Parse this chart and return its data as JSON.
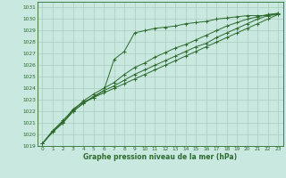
{
  "title": "Graphe pression niveau de la mer (hPa)",
  "bg_color": "#c8e8e0",
  "grid_color": "#aaccbb",
  "line_color": "#2d6a2d",
  "marker_color": "#2d6a2d",
  "xlim": [
    -0.5,
    23.5
  ],
  "ylim": [
    1019,
    1031.5
  ],
  "yticks": [
    1019,
    1020,
    1021,
    1022,
    1023,
    1024,
    1025,
    1026,
    1027,
    1028,
    1029,
    1030,
    1031
  ],
  "xticks": [
    0,
    1,
    2,
    3,
    4,
    5,
    6,
    7,
    8,
    9,
    10,
    11,
    12,
    13,
    14,
    15,
    16,
    17,
    18,
    19,
    20,
    21,
    22,
    23
  ],
  "series": [
    [
      1019.2,
      1020.3,
      1021.1,
      1022.2,
      1022.8,
      1023.2,
      1023.8,
      1026.5,
      1027.2,
      1028.8,
      1029.0,
      1029.2,
      1029.3,
      1029.4,
      1029.6,
      1029.7,
      1029.8,
      1030.0,
      1030.1,
      1030.2,
      1030.3,
      1030.3,
      1030.3,
      1030.4
    ],
    [
      1019.2,
      1020.3,
      1021.2,
      1022.1,
      1022.9,
      1023.5,
      1024.0,
      1024.5,
      1025.2,
      1025.8,
      1026.2,
      1026.7,
      1027.1,
      1027.5,
      1027.8,
      1028.2,
      1028.6,
      1029.0,
      1029.4,
      1029.7,
      1030.0,
      1030.2,
      1030.4,
      1030.5
    ],
    [
      1019.2,
      1020.2,
      1021.0,
      1022.0,
      1022.7,
      1023.3,
      1023.8,
      1024.2,
      1024.7,
      1025.2,
      1025.6,
      1026.0,
      1026.4,
      1026.8,
      1027.2,
      1027.6,
      1027.9,
      1028.4,
      1028.8,
      1029.2,
      1029.6,
      1030.0,
      1030.3,
      1030.5
    ],
    [
      1019.2,
      1020.2,
      1021.0,
      1022.0,
      1022.7,
      1023.2,
      1023.6,
      1024.0,
      1024.4,
      1024.8,
      1025.2,
      1025.6,
      1026.0,
      1026.4,
      1026.8,
      1027.2,
      1027.6,
      1028.0,
      1028.4,
      1028.8,
      1029.2,
      1029.6,
      1030.0,
      1030.4
    ]
  ]
}
